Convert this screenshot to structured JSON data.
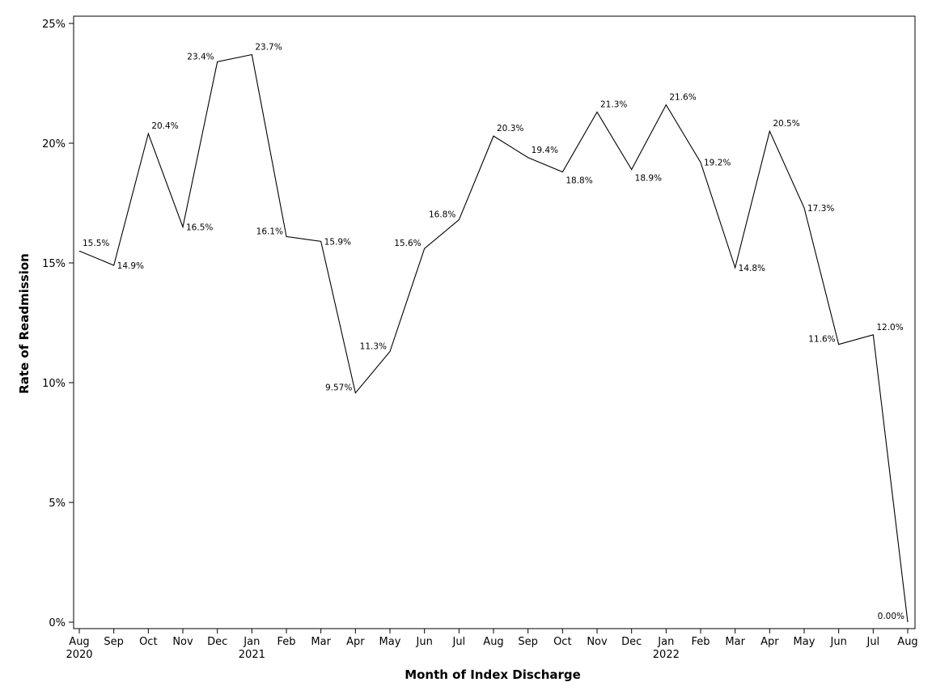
{
  "chart_data": {
    "type": "line",
    "title": "",
    "xlabel": "Month of Index Discharge",
    "ylabel": "Rate of Readmission",
    "ylim": [
      0,
      25
    ],
    "yticks": [
      {
        "value": 0,
        "label": "0%"
      },
      {
        "value": 5,
        "label": "5%"
      },
      {
        "value": 10,
        "label": "10%"
      },
      {
        "value": 15,
        "label": "15%"
      },
      {
        "value": 20,
        "label": "20%"
      },
      {
        "value": 25,
        "label": "25%"
      }
    ],
    "grid": false,
    "points": [
      {
        "month": "Aug",
        "year": "2020",
        "value": 15.5,
        "label": "15.5%",
        "pos": "above-right"
      },
      {
        "month": "Sep",
        "year": "",
        "value": 14.9,
        "label": "14.9%",
        "pos": "right"
      },
      {
        "month": "Oct",
        "year": "",
        "value": 20.4,
        "label": "20.4%",
        "pos": "above-right"
      },
      {
        "month": "Nov",
        "year": "",
        "value": 16.5,
        "label": "16.5%",
        "pos": "right"
      },
      {
        "month": "Dec",
        "year": "",
        "value": 23.4,
        "label": "23.4%",
        "pos": "left"
      },
      {
        "month": "Jan",
        "year": "2021",
        "value": 23.7,
        "label": "23.7%",
        "pos": "above-right"
      },
      {
        "month": "Feb",
        "year": "",
        "value": 16.1,
        "label": "16.1%",
        "pos": "left"
      },
      {
        "month": "Mar",
        "year": "",
        "value": 15.9,
        "label": "15.9%",
        "pos": "right"
      },
      {
        "month": "Apr",
        "year": "",
        "value": 9.57,
        "label": "9.57%",
        "pos": "left"
      },
      {
        "month": "May",
        "year": "",
        "value": 11.3,
        "label": "11.3%",
        "pos": "left"
      },
      {
        "month": "Jun",
        "year": "",
        "value": 15.6,
        "label": "15.6%",
        "pos": "left"
      },
      {
        "month": "Jul",
        "year": "",
        "value": 16.8,
        "label": "16.8%",
        "pos": "left"
      },
      {
        "month": "Aug",
        "year": "",
        "value": 20.3,
        "label": "20.3%",
        "pos": "above-right"
      },
      {
        "month": "Sep",
        "year": "",
        "value": 19.4,
        "label": "19.4%",
        "pos": "above-right"
      },
      {
        "month": "Oct",
        "year": "",
        "value": 18.8,
        "label": "18.8%",
        "pos": "below-right"
      },
      {
        "month": "Nov",
        "year": "",
        "value": 21.3,
        "label": "21.3%",
        "pos": "above-right"
      },
      {
        "month": "Dec",
        "year": "",
        "value": 18.9,
        "label": "18.9%",
        "pos": "below-right"
      },
      {
        "month": "Jan",
        "year": "2022",
        "value": 21.6,
        "label": "21.6%",
        "pos": "above-right"
      },
      {
        "month": "Feb",
        "year": "",
        "value": 19.2,
        "label": "19.2%",
        "pos": "right"
      },
      {
        "month": "Mar",
        "year": "",
        "value": 14.8,
        "label": "14.8%",
        "pos": "right"
      },
      {
        "month": "Apr",
        "year": "",
        "value": 20.5,
        "label": "20.5%",
        "pos": "above-right"
      },
      {
        "month": "May",
        "year": "",
        "value": 17.3,
        "label": "17.3%",
        "pos": "right"
      },
      {
        "month": "Jun",
        "year": "",
        "value": 11.6,
        "label": "11.6%",
        "pos": "left"
      },
      {
        "month": "Jul",
        "year": "",
        "value": 12.0,
        "label": "12.0%",
        "pos": "above-right"
      },
      {
        "month": "Aug",
        "year": "",
        "value": 0.0,
        "label": "0.00%",
        "pos": "above-left"
      }
    ]
  }
}
